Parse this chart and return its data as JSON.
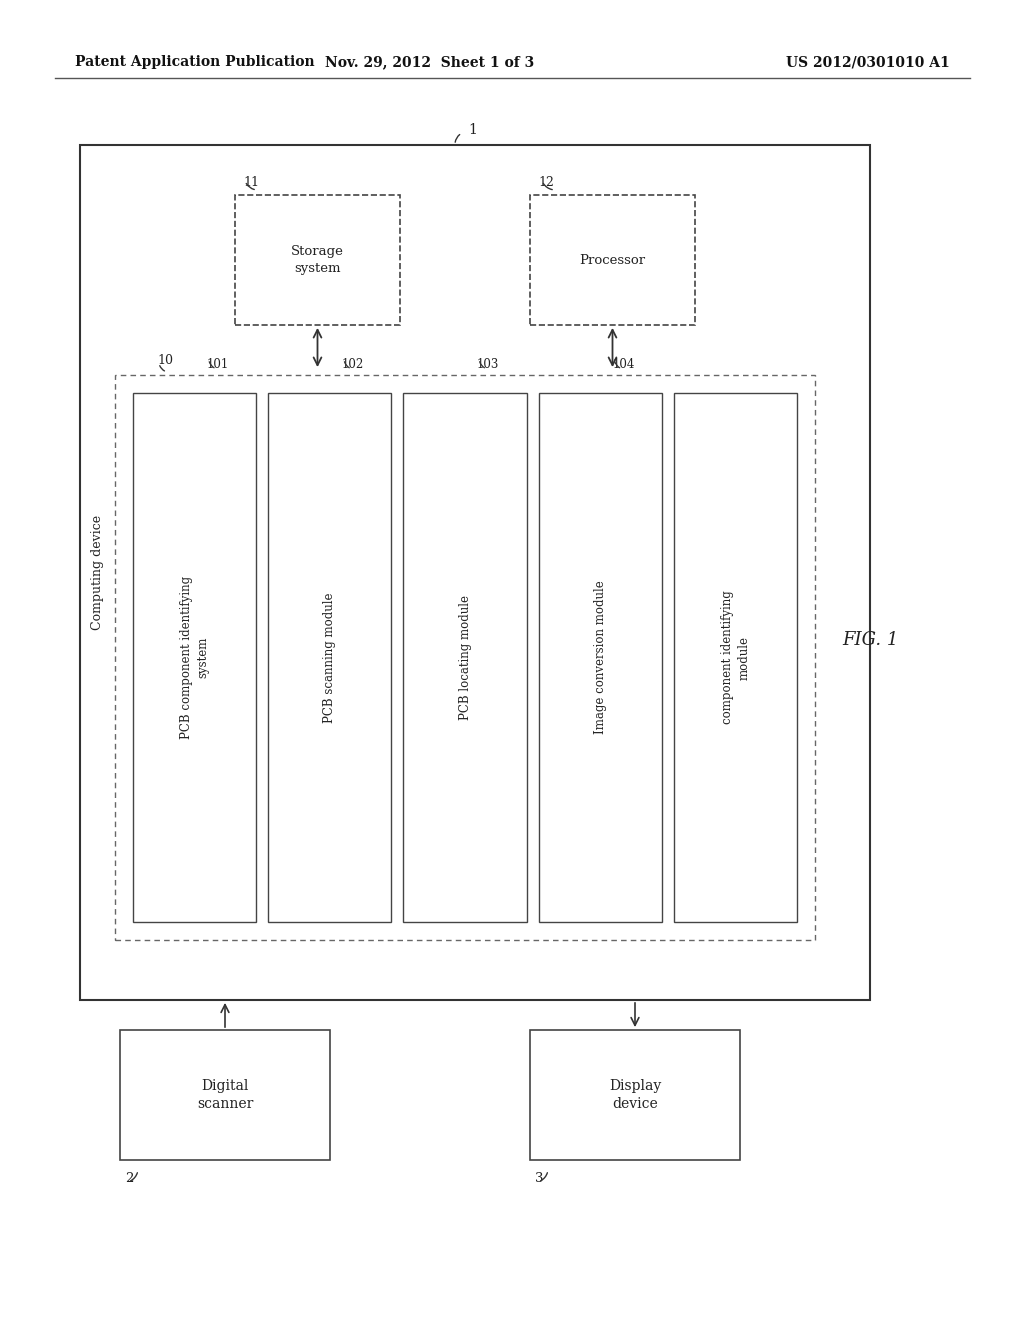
{
  "bg_color": "#ffffff",
  "header_left": "Patent Application Publication",
  "header_center": "Nov. 29, 2012  Sheet 1 of 3",
  "header_right": "US 2012/0301010 A1",
  "fig_label": "FIG. 1",
  "mod_labels": [
    "PCB component identifying\nsystem",
    "PCB scanning module",
    "PCB locating module",
    "Image conversion module",
    "component identifying\nmodule"
  ],
  "mod_refs": [
    "101",
    "102",
    "103",
    "104",
    ""
  ],
  "storage_label": "Storage\nsystem",
  "storage_ref": "11",
  "processor_label": "Processor",
  "processor_ref": "12",
  "outer_ref": "1",
  "inner_ref": "10",
  "outer_label": "Computing device",
  "ds_label": "Digital\nscanner",
  "ds_ref": "2",
  "dd_label": "Display\ndevice",
  "dd_ref": "3"
}
